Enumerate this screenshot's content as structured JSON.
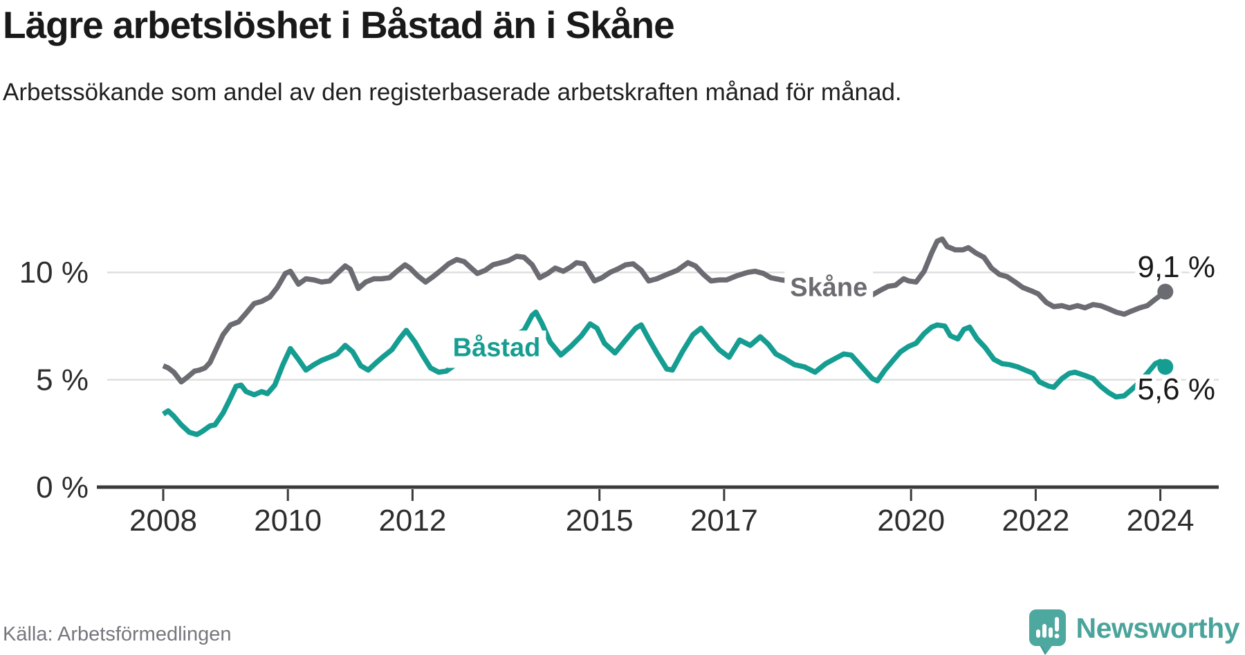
{
  "header": {
    "title": "Lägre arbetslöshet i Båstad än i Skåne",
    "subtitle": "Arbetssökande som andel av den registerbaserade arbetskraften månad för månad."
  },
  "source": {
    "label": "Källa: Arbetsförmedlingen"
  },
  "branding": {
    "name": "Newsworthy",
    "icon": "newsworthy-speech-bubble-chart-icon",
    "bubble_color": "#4DA89F",
    "bubble_shadow_color": "#3E968D",
    "text_color": "#4BA49B"
  },
  "chart_data": {
    "type": "line",
    "title": "Lägre arbetslöshet i Båstad än i Skåne",
    "subtitle": "Arbetssökande som andel av den registerbaserade arbetskraften månad för månad.",
    "xlabel": "",
    "ylabel": "",
    "grid": "horizontal-only",
    "legend_position": "inline-labels",
    "xlim": [
      2007.6,
      2024.9
    ],
    "ylim": [
      0,
      13.5
    ],
    "x_ticks": [
      {
        "value": 2008,
        "label": "2008"
      },
      {
        "value": 2010,
        "label": "2010"
      },
      {
        "value": 2012,
        "label": "2012"
      },
      {
        "value": 2015,
        "label": "2015"
      },
      {
        "value": 2017,
        "label": "2017"
      },
      {
        "value": 2020,
        "label": "2020"
      },
      {
        "value": 2022,
        "label": "2022"
      },
      {
        "value": 2024,
        "label": "2024"
      }
    ],
    "y_ticks": [
      {
        "value": 0,
        "label": "0 %"
      },
      {
        "value": 5,
        "label": "5 %"
      },
      {
        "value": 10,
        "label": "10 %"
      }
    ],
    "series": [
      {
        "name": "Skåne",
        "color": "#6B6B72",
        "end_label": "9,1 %",
        "end_value": 9.1,
        "end_label_dy": -21,
        "label_pos": {
          "x": 2018.68,
          "y": 9.35
        },
        "points": [
          [
            2008.0,
            5.65
          ],
          [
            2008.08,
            5.55
          ],
          [
            2008.17,
            5.35
          ],
          [
            2008.29,
            4.9
          ],
          [
            2008.38,
            5.1
          ],
          [
            2008.5,
            5.4
          ],
          [
            2008.58,
            5.45
          ],
          [
            2008.67,
            5.55
          ],
          [
            2008.75,
            5.8
          ],
          [
            2008.83,
            6.3
          ],
          [
            2008.96,
            7.1
          ],
          [
            2009.08,
            7.55
          ],
          [
            2009.21,
            7.7
          ],
          [
            2009.33,
            8.1
          ],
          [
            2009.46,
            8.55
          ],
          [
            2009.58,
            8.65
          ],
          [
            2009.71,
            8.85
          ],
          [
            2009.83,
            9.3
          ],
          [
            2009.96,
            9.95
          ],
          [
            2010.04,
            10.05
          ],
          [
            2010.17,
            9.45
          ],
          [
            2010.29,
            9.7
          ],
          [
            2010.42,
            9.65
          ],
          [
            2010.54,
            9.55
          ],
          [
            2010.67,
            9.6
          ],
          [
            2010.79,
            9.95
          ],
          [
            2010.92,
            10.3
          ],
          [
            2011.0,
            10.15
          ],
          [
            2011.13,
            9.25
          ],
          [
            2011.25,
            9.55
          ],
          [
            2011.38,
            9.7
          ],
          [
            2011.5,
            9.7
          ],
          [
            2011.63,
            9.75
          ],
          [
            2011.75,
            10.05
          ],
          [
            2011.88,
            10.35
          ],
          [
            2011.96,
            10.2
          ],
          [
            2012.08,
            9.85
          ],
          [
            2012.21,
            9.55
          ],
          [
            2012.33,
            9.8
          ],
          [
            2012.46,
            10.1
          ],
          [
            2012.58,
            10.4
          ],
          [
            2012.71,
            10.6
          ],
          [
            2012.83,
            10.5
          ],
          [
            2012.96,
            10.15
          ],
          [
            2013.04,
            9.95
          ],
          [
            2013.17,
            10.1
          ],
          [
            2013.29,
            10.35
          ],
          [
            2013.42,
            10.45
          ],
          [
            2013.54,
            10.55
          ],
          [
            2013.67,
            10.75
          ],
          [
            2013.79,
            10.7
          ],
          [
            2013.92,
            10.35
          ],
          [
            2014.04,
            9.75
          ],
          [
            2014.17,
            9.95
          ],
          [
            2014.29,
            10.2
          ],
          [
            2014.42,
            10.05
          ],
          [
            2014.54,
            10.25
          ],
          [
            2014.63,
            10.45
          ],
          [
            2014.75,
            10.4
          ],
          [
            2014.92,
            9.6
          ],
          [
            2015.04,
            9.75
          ],
          [
            2015.17,
            10.0
          ],
          [
            2015.29,
            10.15
          ],
          [
            2015.42,
            10.35
          ],
          [
            2015.54,
            10.4
          ],
          [
            2015.67,
            10.1
          ],
          [
            2015.79,
            9.6
          ],
          [
            2015.92,
            9.7
          ],
          [
            2016.08,
            9.9
          ],
          [
            2016.25,
            10.1
          ],
          [
            2016.42,
            10.45
          ],
          [
            2016.54,
            10.3
          ],
          [
            2016.67,
            9.9
          ],
          [
            2016.79,
            9.6
          ],
          [
            2016.92,
            9.65
          ],
          [
            2017.04,
            9.65
          ],
          [
            2017.21,
            9.85
          ],
          [
            2017.38,
            10.0
          ],
          [
            2017.5,
            10.05
          ],
          [
            2017.63,
            9.95
          ],
          [
            2017.75,
            9.75
          ],
          [
            2017.92,
            9.65
          ],
          [
            2018.08,
            9.6
          ],
          [
            2018.25,
            9.75
          ],
          [
            2018.42,
            9.7
          ],
          [
            2018.58,
            9.55
          ],
          [
            2018.75,
            9.35
          ],
          [
            2018.92,
            9.2
          ],
          [
            2019.08,
            9.05
          ],
          [
            2019.25,
            8.95
          ],
          [
            2019.38,
            8.95
          ],
          [
            2019.5,
            9.15
          ],
          [
            2019.63,
            9.35
          ],
          [
            2019.75,
            9.4
          ],
          [
            2019.88,
            9.7
          ],
          [
            2019.96,
            9.6
          ],
          [
            2020.08,
            9.55
          ],
          [
            2020.21,
            10.05
          ],
          [
            2020.33,
            10.9
          ],
          [
            2020.42,
            11.45
          ],
          [
            2020.5,
            11.55
          ],
          [
            2020.58,
            11.2
          ],
          [
            2020.71,
            11.05
          ],
          [
            2020.83,
            11.05
          ],
          [
            2020.92,
            11.15
          ],
          [
            2021.04,
            10.9
          ],
          [
            2021.17,
            10.7
          ],
          [
            2021.29,
            10.2
          ],
          [
            2021.42,
            9.9
          ],
          [
            2021.54,
            9.8
          ],
          [
            2021.67,
            9.55
          ],
          [
            2021.79,
            9.3
          ],
          [
            2021.92,
            9.15
          ],
          [
            2022.04,
            9.0
          ],
          [
            2022.17,
            8.6
          ],
          [
            2022.29,
            8.4
          ],
          [
            2022.42,
            8.45
          ],
          [
            2022.54,
            8.35
          ],
          [
            2022.67,
            8.45
          ],
          [
            2022.79,
            8.35
          ],
          [
            2022.92,
            8.5
          ],
          [
            2023.04,
            8.45
          ],
          [
            2023.17,
            8.3
          ],
          [
            2023.29,
            8.15
          ],
          [
            2023.42,
            8.05
          ],
          [
            2023.54,
            8.2
          ],
          [
            2023.67,
            8.35
          ],
          [
            2023.79,
            8.45
          ],
          [
            2023.92,
            8.75
          ],
          [
            2024.08,
            9.1
          ]
        ]
      },
      {
        "name": "Båstad",
        "color": "#169D92",
        "end_label": "5,6 %",
        "end_value": 5.6,
        "end_label_dy": 47,
        "label_pos": {
          "x": 2013.35,
          "y": 6.55
        },
        "points": [
          [
            2008.0,
            3.4
          ],
          [
            2008.08,
            3.55
          ],
          [
            2008.17,
            3.3
          ],
          [
            2008.29,
            2.9
          ],
          [
            2008.42,
            2.55
          ],
          [
            2008.54,
            2.45
          ],
          [
            2008.63,
            2.6
          ],
          [
            2008.75,
            2.85
          ],
          [
            2008.83,
            2.9
          ],
          [
            2008.96,
            3.45
          ],
          [
            2009.08,
            4.15
          ],
          [
            2009.17,
            4.7
          ],
          [
            2009.25,
            4.75
          ],
          [
            2009.33,
            4.45
          ],
          [
            2009.46,
            4.3
          ],
          [
            2009.58,
            4.45
          ],
          [
            2009.67,
            4.35
          ],
          [
            2009.79,
            4.75
          ],
          [
            2009.92,
            5.7
          ],
          [
            2010.04,
            6.45
          ],
          [
            2010.17,
            5.95
          ],
          [
            2010.29,
            5.45
          ],
          [
            2010.42,
            5.7
          ],
          [
            2010.54,
            5.9
          ],
          [
            2010.67,
            6.05
          ],
          [
            2010.79,
            6.2
          ],
          [
            2010.92,
            6.6
          ],
          [
            2011.04,
            6.3
          ],
          [
            2011.17,
            5.65
          ],
          [
            2011.29,
            5.45
          ],
          [
            2011.42,
            5.8
          ],
          [
            2011.54,
            6.1
          ],
          [
            2011.67,
            6.4
          ],
          [
            2011.79,
            6.9
          ],
          [
            2011.9,
            7.3
          ],
          [
            2012.04,
            6.75
          ],
          [
            2012.17,
            6.1
          ],
          [
            2012.29,
            5.55
          ],
          [
            2012.42,
            5.35
          ],
          [
            2012.54,
            5.4
          ],
          [
            2012.71,
            5.75
          ],
          [
            2012.88,
            6.05
          ],
          [
            2013.04,
            6.35
          ],
          [
            2013.21,
            6.5
          ],
          [
            2013.38,
            6.7
          ],
          [
            2013.54,
            6.95
          ],
          [
            2013.67,
            7.1
          ],
          [
            2013.79,
            7.3
          ],
          [
            2013.92,
            8.0
          ],
          [
            2013.98,
            8.15
          ],
          [
            2014.08,
            7.6
          ],
          [
            2014.21,
            6.75
          ],
          [
            2014.38,
            6.15
          ],
          [
            2014.54,
            6.55
          ],
          [
            2014.71,
            7.05
          ],
          [
            2014.85,
            7.6
          ],
          [
            2014.96,
            7.4
          ],
          [
            2015.08,
            6.7
          ],
          [
            2015.25,
            6.25
          ],
          [
            2015.42,
            6.85
          ],
          [
            2015.58,
            7.4
          ],
          [
            2015.67,
            7.55
          ],
          [
            2015.79,
            6.9
          ],
          [
            2015.92,
            6.25
          ],
          [
            2016.08,
            5.5
          ],
          [
            2016.17,
            5.45
          ],
          [
            2016.33,
            6.3
          ],
          [
            2016.5,
            7.1
          ],
          [
            2016.63,
            7.4
          ],
          [
            2016.79,
            6.85
          ],
          [
            2016.92,
            6.4
          ],
          [
            2017.08,
            6.05
          ],
          [
            2017.25,
            6.85
          ],
          [
            2017.42,
            6.6
          ],
          [
            2017.58,
            7.0
          ],
          [
            2017.71,
            6.65
          ],
          [
            2017.83,
            6.2
          ],
          [
            2017.96,
            6.0
          ],
          [
            2018.13,
            5.7
          ],
          [
            2018.29,
            5.6
          ],
          [
            2018.46,
            5.35
          ],
          [
            2018.63,
            5.75
          ],
          [
            2018.79,
            6.0
          ],
          [
            2018.92,
            6.2
          ],
          [
            2019.04,
            6.15
          ],
          [
            2019.21,
            5.6
          ],
          [
            2019.38,
            5.05
          ],
          [
            2019.46,
            4.95
          ],
          [
            2019.58,
            5.45
          ],
          [
            2019.71,
            5.9
          ],
          [
            2019.83,
            6.3
          ],
          [
            2019.96,
            6.55
          ],
          [
            2020.08,
            6.7
          ],
          [
            2020.21,
            7.15
          ],
          [
            2020.33,
            7.45
          ],
          [
            2020.42,
            7.55
          ],
          [
            2020.54,
            7.5
          ],
          [
            2020.63,
            7.05
          ],
          [
            2020.75,
            6.9
          ],
          [
            2020.85,
            7.35
          ],
          [
            2020.94,
            7.45
          ],
          [
            2021.06,
            6.9
          ],
          [
            2021.19,
            6.5
          ],
          [
            2021.33,
            5.95
          ],
          [
            2021.46,
            5.75
          ],
          [
            2021.58,
            5.7
          ],
          [
            2021.71,
            5.6
          ],
          [
            2021.83,
            5.45
          ],
          [
            2021.96,
            5.3
          ],
          [
            2022.06,
            4.9
          ],
          [
            2022.21,
            4.7
          ],
          [
            2022.29,
            4.65
          ],
          [
            2022.42,
            5.05
          ],
          [
            2022.54,
            5.3
          ],
          [
            2022.63,
            5.35
          ],
          [
            2022.79,
            5.2
          ],
          [
            2022.92,
            5.05
          ],
          [
            2023.04,
            4.7
          ],
          [
            2023.17,
            4.4
          ],
          [
            2023.29,
            4.2
          ],
          [
            2023.42,
            4.25
          ],
          [
            2023.54,
            4.55
          ],
          [
            2023.67,
            4.9
          ],
          [
            2023.79,
            5.3
          ],
          [
            2023.92,
            5.75
          ],
          [
            2024.0,
            5.85
          ],
          [
            2024.08,
            5.6
          ]
        ]
      }
    ]
  }
}
